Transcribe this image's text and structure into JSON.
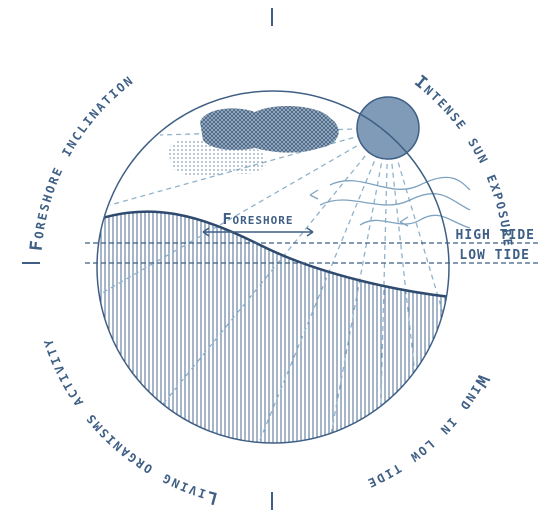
{
  "outer_labels": [
    "Foreshore inclination",
    "Intense sun exposure",
    "Wind in low tide",
    "Living organisms activity"
  ],
  "inner_labels": {
    "foreshore": "Foreshore",
    "high_tide": "HIGH TIDE",
    "low_tide": "LOW TIDE"
  }
}
